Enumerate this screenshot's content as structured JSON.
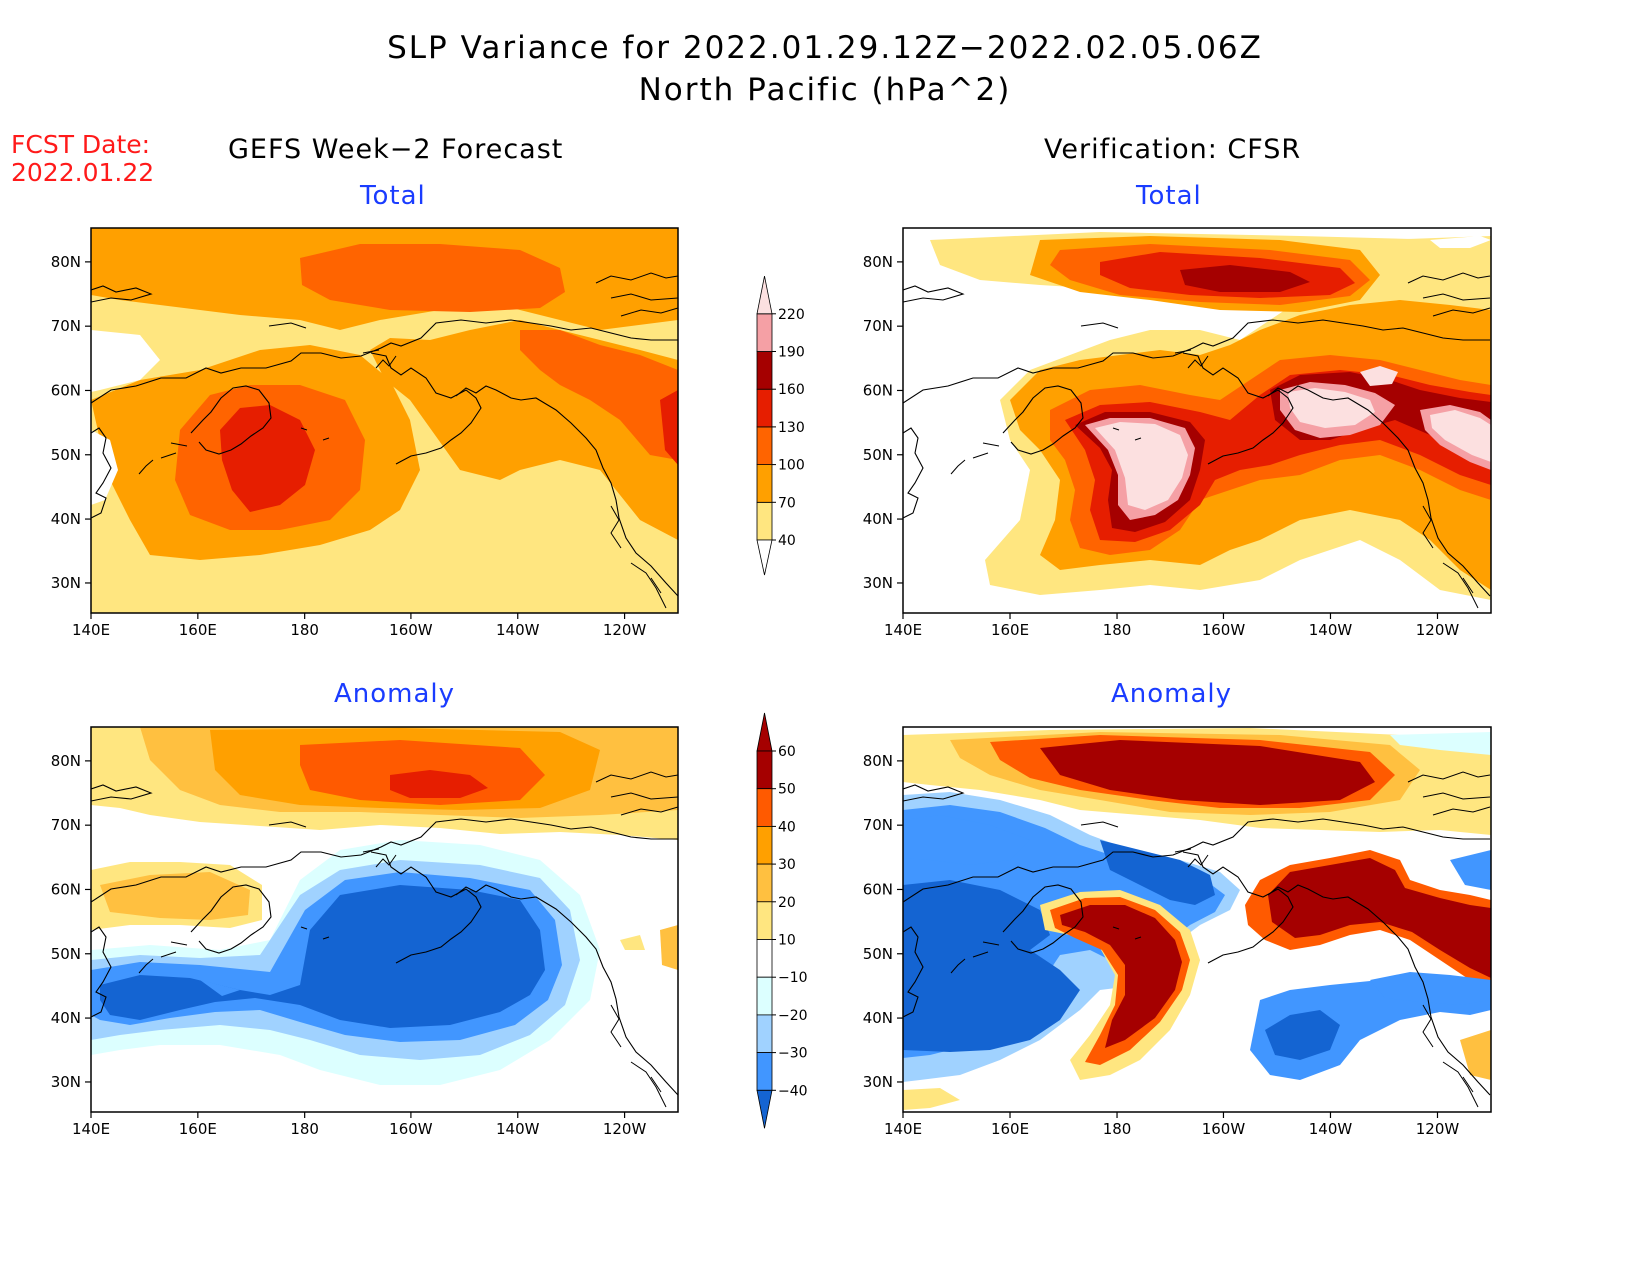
{
  "header": {
    "title_line1": "SLP Variance for 2022.01.29.12Z−2022.02.05.06Z",
    "title_line2": "North Pacific (hPa^2)",
    "fcst_label": "FCST Date:",
    "fcst_date": "2022.01.22",
    "left_column_title": "GEFS Week−2 Forecast",
    "right_column_title": "Verification: CFSR"
  },
  "panels": {
    "top_left": "Total",
    "top_right": "Total",
    "bottom_left": "Anomaly",
    "bottom_right": "Anomaly"
  },
  "axes": {
    "lat_labels": [
      "80N",
      "70N",
      "60N",
      "50N",
      "40N",
      "30N"
    ],
    "lon_labels": [
      "140E",
      "160E",
      "180",
      "160W",
      "140W",
      "120W"
    ]
  },
  "colorbar_total": {
    "levels": [
      "40",
      "70",
      "100",
      "130",
      "160",
      "190",
      "220"
    ],
    "colors": [
      "#ffe680",
      "#ffa000",
      "#ff6400",
      "#e61e00",
      "#a50000",
      "#f5a0a5",
      "#fce0e0"
    ]
  },
  "colorbar_anomaly": {
    "levels": [
      "60",
      "50",
      "40",
      "30",
      "20",
      "10",
      "−10",
      "−20",
      "−30",
      "−40"
    ],
    "colors": [
      "#a50000",
      "#ff5a00",
      "#ffa000",
      "#ffc040",
      "#ffe680",
      "#ffffff",
      "#dcffff",
      "#a0d2ff",
      "#4196ff",
      "#1464d2"
    ]
  },
  "palette": {
    "tot1": "#ffe680",
    "tot2": "#ffa000",
    "tot3": "#ff6400",
    "tot4": "#e61e00",
    "tot5": "#a50000",
    "tot6": "#f5a0a5",
    "tot7": "#fce0e0",
    "an_pos1": "#ffe680",
    "an_pos2": "#ffc040",
    "an_pos3": "#ffa000",
    "an_pos4": "#ff5a00",
    "an_pos5": "#a50000",
    "an_neg1": "#dcffff",
    "an_neg2": "#a0d2ff",
    "an_neg3": "#4196ff",
    "an_neg4": "#1464d2"
  }
}
